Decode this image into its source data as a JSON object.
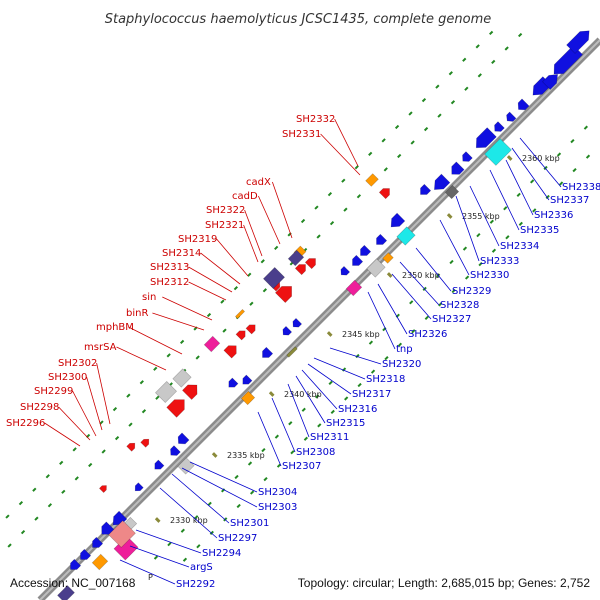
{
  "title": "Staphylococcus haemolyticus JCSC1435, complete genome",
  "footer": {
    "accession": "Accession: NC_007168",
    "summary": "Topology: circular; Length: 2,685,015 bp; Genes: 2,752"
  },
  "colors": {
    "backbone": "#8c8c8c",
    "label_reverse": "#cc0000",
    "label_forward": "#0000cc",
    "cds_forward": "#1010e0",
    "cds_reverse": "#ee1111",
    "rna": "#ff9900",
    "mobile": "#1de8e8",
    "pseudo": "#c8c8c8",
    "regulatory": "#ee1e9a",
    "other": "#4a3e8c",
    "rrna": "#ee8888",
    "grid_dots": "#228822"
  },
  "scale_marks": [
    {
      "label": "2330 kbp"
    },
    {
      "label": "2335 kbp"
    },
    {
      "label": "2340 kbp"
    },
    {
      "label": "2345 kbp"
    },
    {
      "label": "2350 kbp"
    },
    {
      "label": "2355 kbp"
    },
    {
      "label": "2360 kbp"
    }
  ],
  "reverse_labels": [
    "SH2332",
    "SH2331",
    "cadX",
    "cadD",
    "SH2322",
    "SH2321",
    "SH2319",
    "SH2314",
    "SH2313",
    "SH2312",
    "sin",
    "binR",
    "mphBM",
    "msrSA",
    "SH2302",
    "SH2300",
    "SH2299",
    "SH2298",
    "SH2296"
  ],
  "forward_labels": [
    "SH2338",
    "SH2337",
    "SH2336",
    "SH2335",
    "SH2334",
    "SH2333",
    "SH2330",
    "SH2329",
    "SH2328",
    "SH2327",
    "SH2326",
    "tnp",
    "SH2320",
    "SH2318",
    "SH2317",
    "SH2316",
    "SH2315",
    "SH2311",
    "SH2308",
    "SH2307",
    "SH2304",
    "SH2303",
    "SH2301",
    "SH2297",
    "SH2294",
    "argS",
    "SH2292"
  ],
  "small_marker": "P"
}
